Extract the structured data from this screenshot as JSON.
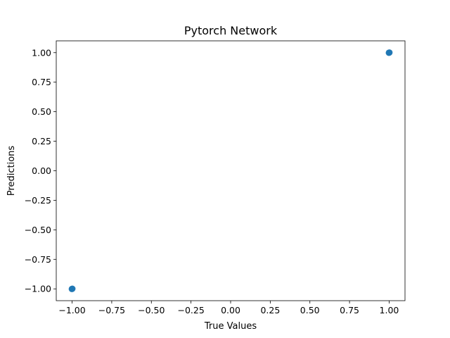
{
  "chart_data": {
    "type": "scatter",
    "title": "Pytorch Network",
    "xlabel": "True Values",
    "ylabel": "Predictions",
    "xlim": [
      -1.1,
      1.1
    ],
    "ylim": [
      -1.1,
      1.1
    ],
    "xticks": [
      -1.0,
      -0.75,
      -0.5,
      -0.25,
      0.0,
      0.25,
      0.5,
      0.75,
      1.0
    ],
    "xtick_labels": [
      "−1.00",
      "−0.75",
      "−0.50",
      "−0.25",
      "0.00",
      "0.25",
      "0.50",
      "0.75",
      "1.00"
    ],
    "yticks": [
      -1.0,
      -0.75,
      -0.5,
      -0.25,
      0.0,
      0.25,
      0.5,
      0.75,
      1.0
    ],
    "ytick_labels": [
      "−1.00",
      "−0.75",
      "−0.50",
      "−0.25",
      "0.00",
      "0.25",
      "0.50",
      "0.75",
      "1.00"
    ],
    "grid": false,
    "series": [
      {
        "color": "#1f77b4",
        "points": [
          {
            "x": -1.0,
            "y": -1.0
          },
          {
            "x": -0.998,
            "y": -0.999
          },
          {
            "x": -1.002,
            "y": -1.001
          },
          {
            "x": 1.0,
            "y": 1.0
          },
          {
            "x": 0.998,
            "y": 0.999
          },
          {
            "x": 1.002,
            "y": 1.001
          }
        ]
      }
    ]
  }
}
